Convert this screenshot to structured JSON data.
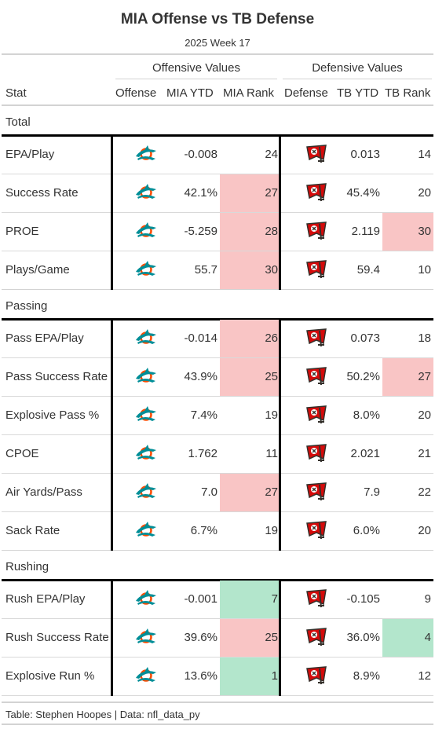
{
  "title": "MIA Offense vs TB Defense",
  "subtitle": "2025 Week 17",
  "groups": {
    "offense": "Offensive Values",
    "defense": "Defensive Values"
  },
  "columns": [
    "Stat",
    "Offense",
    "MIA YTD",
    "MIA Rank",
    "Defense",
    "TB YTD",
    "TB Rank"
  ],
  "colors": {
    "bad_rank": "#f9c5c5",
    "good_rank": "#b3e6cc",
    "dolphins_aqua": "#008e97",
    "dolphins_orange": "#fc4c02",
    "bucs_red": "#d50a0a",
    "bucs_pewter": "#34302b"
  },
  "sections": [
    {
      "name": "Total",
      "rows": [
        {
          "stat": "EPA/Play",
          "off_logo": "dolphins-logo-icon",
          "mia_ytd": "-0.008",
          "mia_rank": "24",
          "mia_flag": "",
          "def_logo": "buccaneers-logo-icon",
          "tb_ytd": "0.013",
          "tb_rank": "14",
          "tb_flag": ""
        },
        {
          "stat": "Success Rate",
          "off_logo": "dolphins-logo-icon",
          "mia_ytd": "42.1%",
          "mia_rank": "27",
          "mia_flag": "bad",
          "def_logo": "buccaneers-logo-icon",
          "tb_ytd": "45.4%",
          "tb_rank": "20",
          "tb_flag": ""
        },
        {
          "stat": "PROE",
          "off_logo": "dolphins-logo-icon",
          "mia_ytd": "-5.259",
          "mia_rank": "28",
          "mia_flag": "bad",
          "def_logo": "buccaneers-logo-icon",
          "tb_ytd": "2.119",
          "tb_rank": "30",
          "tb_flag": "bad"
        },
        {
          "stat": "Plays/Game",
          "off_logo": "dolphins-logo-icon",
          "mia_ytd": "55.7",
          "mia_rank": "30",
          "mia_flag": "bad",
          "def_logo": "buccaneers-logo-icon",
          "tb_ytd": "59.4",
          "tb_rank": "10",
          "tb_flag": ""
        }
      ]
    },
    {
      "name": "Passing",
      "rows": [
        {
          "stat": "Pass EPA/Play",
          "off_logo": "dolphins-logo-icon",
          "mia_ytd": "-0.014",
          "mia_rank": "26",
          "mia_flag": "bad",
          "def_logo": "buccaneers-logo-icon",
          "tb_ytd": "0.073",
          "tb_rank": "18",
          "tb_flag": ""
        },
        {
          "stat": "Pass Success Rate",
          "off_logo": "dolphins-logo-icon",
          "mia_ytd": "43.9%",
          "mia_rank": "25",
          "mia_flag": "bad",
          "def_logo": "buccaneers-logo-icon",
          "tb_ytd": "50.2%",
          "tb_rank": "27",
          "tb_flag": "bad"
        },
        {
          "stat": "Explosive Pass %",
          "off_logo": "dolphins-logo-icon",
          "mia_ytd": "7.4%",
          "mia_rank": "19",
          "mia_flag": "",
          "def_logo": "buccaneers-logo-icon",
          "tb_ytd": "8.0%",
          "tb_rank": "20",
          "tb_flag": ""
        },
        {
          "stat": "CPOE",
          "off_logo": "dolphins-logo-icon",
          "mia_ytd": "1.762",
          "mia_rank": "11",
          "mia_flag": "",
          "def_logo": "buccaneers-logo-icon",
          "tb_ytd": "2.021",
          "tb_rank": "21",
          "tb_flag": ""
        },
        {
          "stat": "Air Yards/Pass",
          "off_logo": "dolphins-logo-icon",
          "mia_ytd": "7.0",
          "mia_rank": "27",
          "mia_flag": "bad",
          "def_logo": "buccaneers-logo-icon",
          "tb_ytd": "7.9",
          "tb_rank": "22",
          "tb_flag": ""
        },
        {
          "stat": "Sack Rate",
          "off_logo": "dolphins-logo-icon",
          "mia_ytd": "6.7%",
          "mia_rank": "19",
          "mia_flag": "",
          "def_logo": "buccaneers-logo-icon",
          "tb_ytd": "6.0%",
          "tb_rank": "20",
          "tb_flag": ""
        }
      ]
    },
    {
      "name": "Rushing",
      "rows": [
        {
          "stat": "Rush EPA/Play",
          "off_logo": "dolphins-logo-icon",
          "mia_ytd": "-0.001",
          "mia_rank": "7",
          "mia_flag": "good",
          "def_logo": "buccaneers-logo-icon",
          "tb_ytd": "-0.105",
          "tb_rank": "9",
          "tb_flag": ""
        },
        {
          "stat": "Rush Success Rate",
          "off_logo": "dolphins-logo-icon",
          "mia_ytd": "39.6%",
          "mia_rank": "25",
          "mia_flag": "bad",
          "def_logo": "buccaneers-logo-icon",
          "tb_ytd": "36.0%",
          "tb_rank": "4",
          "tb_flag": "good"
        },
        {
          "stat": "Explosive Run %",
          "off_logo": "dolphins-logo-icon",
          "mia_ytd": "13.6%",
          "mia_rank": "1",
          "mia_flag": "good",
          "def_logo": "buccaneers-logo-icon",
          "tb_ytd": "8.9%",
          "tb_rank": "12",
          "tb_flag": ""
        }
      ]
    }
  ],
  "footer": "Table: Stephen Hoopes | Data: nfl_data_py"
}
